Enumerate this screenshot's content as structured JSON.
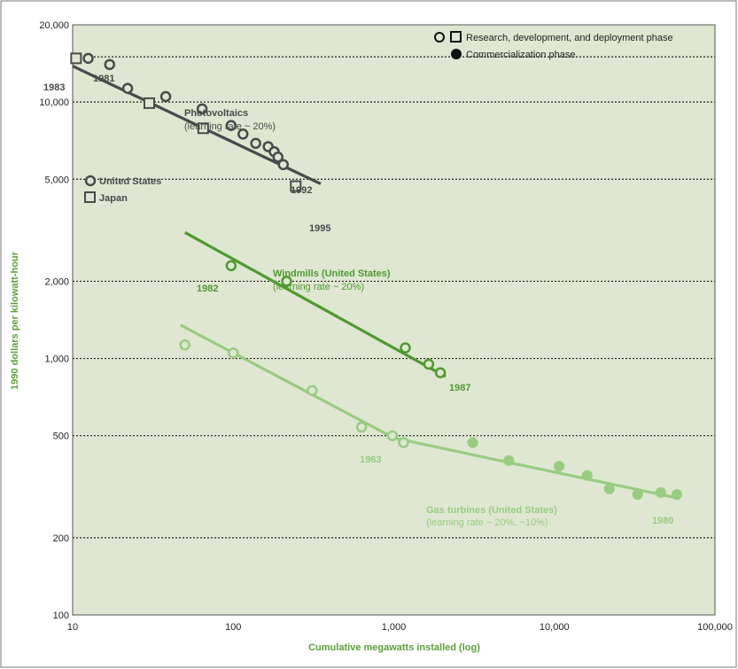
{
  "chart_data": {
    "type": "scatter",
    "x_scale": "log",
    "y_scale": "log",
    "xlabel": "Cumulative megawatts installed (log)",
    "ylabel": "1990 dollars per kilowatt-hour",
    "xlim": [
      10,
      100000
    ],
    "ylim": [
      100,
      20000
    ],
    "x_ticks": [
      10,
      100,
      1000,
      10000,
      100000
    ],
    "x_tick_labels": [
      "10",
      "100",
      "1,000",
      "10,000",
      "100,000"
    ],
    "y_ticks": [
      100,
      200,
      500,
      1000,
      2000,
      5000,
      10000,
      20000
    ],
    "y_tick_labels": [
      "100",
      "200",
      "500",
      "1,000",
      "2,000",
      "5,000",
      "10,000",
      "20,000"
    ],
    "grid_y": [
      200,
      500,
      1000,
      2000,
      5000,
      10000,
      15000
    ],
    "colors": {
      "background": "#dfe7d2",
      "pv": "#4a4a4a",
      "wind": "#4f9a30",
      "gas": "#98cc80",
      "axis_title": "#5aa03a"
    },
    "legend": {
      "rdd": "Research, development, and deployment phase",
      "commercial": "Commercialization phase",
      "position": "top-right"
    },
    "pv_legend": {
      "us": "United States",
      "japan": "Japan"
    },
    "series": [
      {
        "key": "pv_us",
        "name": "United States",
        "color": "#4a4a4a",
        "marker": "circle-open",
        "points": [
          [
            12.5,
            14800
          ],
          [
            17,
            14000
          ],
          [
            22,
            11300
          ],
          [
            38,
            10500
          ],
          [
            64,
            9400
          ],
          [
            97,
            8100
          ],
          [
            115,
            7500
          ],
          [
            138,
            6900
          ],
          [
            165,
            6700
          ],
          [
            180,
            6400
          ],
          [
            190,
            6100
          ],
          [
            205,
            5700
          ]
        ]
      },
      {
        "key": "pv_japan",
        "name": "Japan",
        "color": "#4a4a4a",
        "marker": "square-open",
        "points": [
          [
            10.5,
            14800
          ],
          [
            30,
            9900
          ],
          [
            65,
            7900
          ],
          [
            245,
            4700
          ]
        ]
      },
      {
        "key": "wind",
        "color": "#4f9a30",
        "marker": "circle-open",
        "points": [
          [
            97,
            2300
          ],
          [
            215,
            2000
          ],
          [
            1180,
            1100
          ],
          [
            1650,
            950
          ],
          [
            1950,
            880
          ]
        ]
      },
      {
        "key": "gas_rdd",
        "color": "#98cc80",
        "marker": "circle-open",
        "points": [
          [
            50,
            1130
          ],
          [
            100,
            1050
          ],
          [
            310,
            750
          ],
          [
            630,
            540
          ],
          [
            980,
            500
          ],
          [
            1150,
            470
          ]
        ]
      },
      {
        "key": "gas_commercial",
        "color": "#98cc80",
        "marker": "circle-filled",
        "points": [
          [
            3100,
            470
          ],
          [
            5200,
            400
          ],
          [
            10700,
            380
          ],
          [
            16000,
            350
          ],
          [
            22000,
            310
          ],
          [
            33000,
            295
          ],
          [
            46000,
            300
          ],
          [
            58000,
            295
          ]
        ]
      }
    ],
    "trend_lines": [
      {
        "key": "pv",
        "color": "#4a4a4a",
        "points": [
          [
            10,
            13800
          ],
          [
            350,
            4800
          ]
        ]
      },
      {
        "key": "wind",
        "color": "#4f9a30",
        "points": [
          [
            50,
            3100
          ],
          [
            2100,
            850
          ]
        ]
      },
      {
        "key": "gas",
        "color": "#98cc80",
        "points": [
          [
            47,
            1350
          ],
          [
            1000,
            490
          ],
          [
            5000,
            395
          ],
          [
            60000,
            285
          ]
        ]
      }
    ],
    "annotations": {
      "pv_title": "Photovoltaics",
      "pv_rate": "(learning rate ~ 20%)",
      "wind_title": "Windmills (United States)",
      "wind_rate": "(learning rate ~ 20%)",
      "gas_title": "Gas turbines (United States)",
      "gas_rate": "(learning rate ~ 20%, ~10%)",
      "y1981": "1981",
      "y1983": "1983",
      "y1992": "1992",
      "y1995": "1995",
      "y1982": "1982",
      "y1987": "1987",
      "y1963": "1963",
      "y1980": "1980"
    }
  }
}
